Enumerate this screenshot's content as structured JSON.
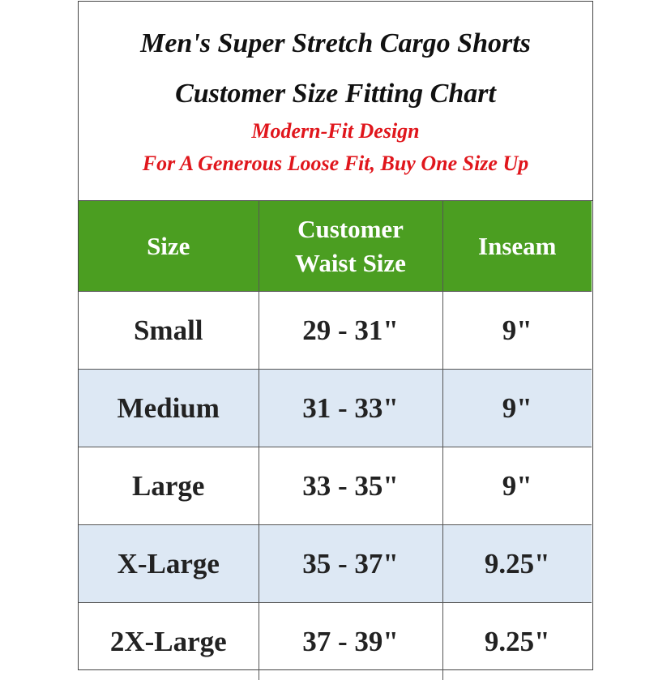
{
  "title": {
    "line1": "Men's Super Stretch Cargo Shorts",
    "line2": "Customer Size Fitting Chart",
    "subtitle1": "Modern-Fit Design",
    "subtitle2": "For A Generous Loose Fit, Buy One Size Up"
  },
  "colors": {
    "header_bg": "#4b9e21",
    "alt_row_bg": "#dde8f4",
    "subtitle": "#e0161c"
  },
  "table": {
    "headers": [
      "Size",
      "Customer Waist Size",
      "Inseam"
    ],
    "rows": [
      [
        "Small",
        "29 - 31\"",
        "9\""
      ],
      [
        "Medium",
        "31 - 33\"",
        "9\""
      ],
      [
        "Large",
        "33 - 35\"",
        "9\""
      ],
      [
        "X-Large",
        "35 - 37\"",
        "9.25\""
      ],
      [
        "2X-Large",
        "37 - 39\"",
        "9.25\""
      ]
    ]
  }
}
